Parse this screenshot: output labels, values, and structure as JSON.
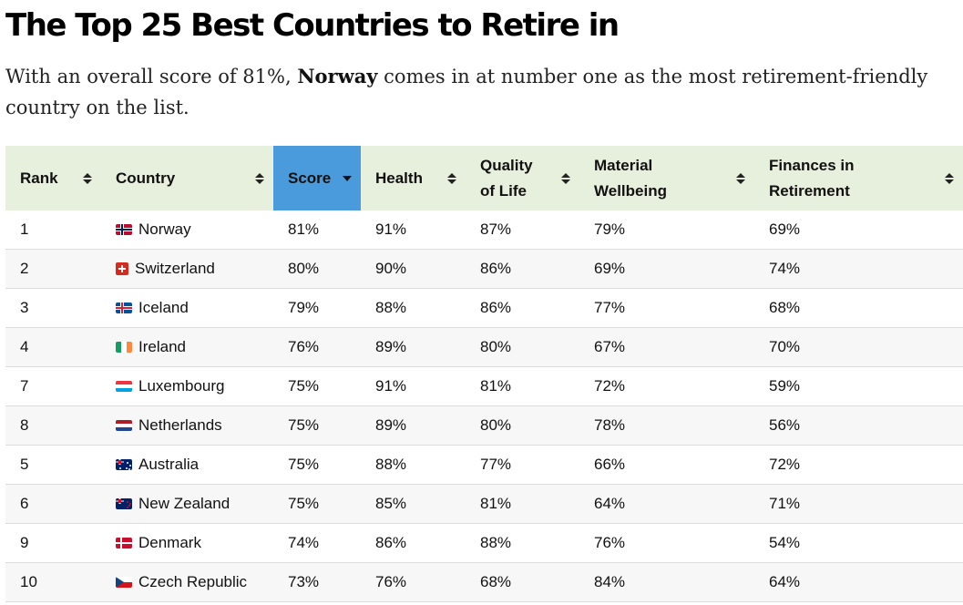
{
  "page": {
    "title": "The Top 25 Best Countries to Retire in",
    "intro_before": "With an overall score of 81%, ",
    "intro_bold": "Norway",
    "intro_after": " comes in at number one as the most retirement-friendly country on the list."
  },
  "table": {
    "headers": {
      "rank": "Rank",
      "country": "Country",
      "score": "Score",
      "health": "Health",
      "quality_of_life": "Quality of Life",
      "material_wellbeing": "Material Wellbeing",
      "finances_in_retirement": "Finances in Retirement"
    },
    "sorted_column": "score",
    "sort_direction": "descending",
    "header_bg": "#e6f0dc",
    "active_header_bg": "#4a9bdc",
    "rows": [
      {
        "rank": "1",
        "flag": "norway-flag-icon",
        "country": "Norway",
        "score": "81%",
        "health": "91%",
        "quality_of_life": "87%",
        "material_wellbeing": "79%",
        "finances_in_retirement": "69%"
      },
      {
        "rank": "2",
        "flag": "switzerland-flag-icon",
        "country": "Switzerland",
        "score": "80%",
        "health": "90%",
        "quality_of_life": "86%",
        "material_wellbeing": "69%",
        "finances_in_retirement": "74%"
      },
      {
        "rank": "3",
        "flag": "iceland-flag-icon",
        "country": "Iceland",
        "score": "79%",
        "health": "88%",
        "quality_of_life": "86%",
        "material_wellbeing": "77%",
        "finances_in_retirement": "68%"
      },
      {
        "rank": "4",
        "flag": "ireland-flag-icon",
        "country": "Ireland",
        "score": "76%",
        "health": "89%",
        "quality_of_life": "80%",
        "material_wellbeing": "67%",
        "finances_in_retirement": "70%"
      },
      {
        "rank": "7",
        "flag": "luxembourg-flag-icon",
        "country": "Luxembourg",
        "score": "75%",
        "health": "91%",
        "quality_of_life": "81%",
        "material_wellbeing": "72%",
        "finances_in_retirement": "59%"
      },
      {
        "rank": "8",
        "flag": "netherlands-flag-icon",
        "country": "Netherlands",
        "score": "75%",
        "health": "89%",
        "quality_of_life": "80%",
        "material_wellbeing": "78%",
        "finances_in_retirement": "56%"
      },
      {
        "rank": "5",
        "flag": "australia-flag-icon",
        "country": "Australia",
        "score": "75%",
        "health": "88%",
        "quality_of_life": "77%",
        "material_wellbeing": "66%",
        "finances_in_retirement": "72%"
      },
      {
        "rank": "6",
        "flag": "new-zealand-flag-icon",
        "country": "New Zealand",
        "score": "75%",
        "health": "85%",
        "quality_of_life": "81%",
        "material_wellbeing": "64%",
        "finances_in_retirement": "71%"
      },
      {
        "rank": "9",
        "flag": "denmark-flag-icon",
        "country": "Denmark",
        "score": "74%",
        "health": "86%",
        "quality_of_life": "88%",
        "material_wellbeing": "76%",
        "finances_in_retirement": "54%"
      },
      {
        "rank": "10",
        "flag": "czech-republic-flag-icon",
        "country": "Czech Republic",
        "score": "73%",
        "health": "76%",
        "quality_of_life": "68%",
        "material_wellbeing": "84%",
        "finances_in_retirement": "64%"
      }
    ]
  }
}
